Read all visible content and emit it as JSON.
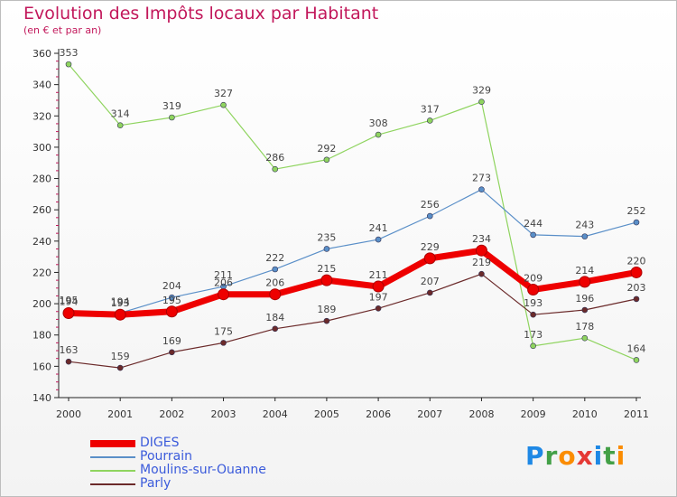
{
  "header": {
    "title": "Evolution des Impôts locaux par Habitant",
    "subtitle": "(en € et par an)"
  },
  "logo": {
    "letters": [
      "P",
      "r",
      "o",
      "x",
      "i",
      "t",
      "i"
    ],
    "colors": [
      "#1e88e5",
      "#43a047",
      "#fb8c00",
      "#e53935",
      "#1e88e5",
      "#43a047",
      "#fb8c00"
    ]
  },
  "chart_data": {
    "type": "line",
    "title": "Evolution des Impôts locaux par Habitant",
    "subtitle": "(en € et par an)",
    "x": [
      "2000",
      "2001",
      "2002",
      "2003",
      "2004",
      "2005",
      "2006",
      "2007",
      "2008",
      "2009",
      "2010",
      "2011"
    ],
    "ylim": [
      140,
      360
    ],
    "yticks": [
      140,
      160,
      180,
      200,
      220,
      240,
      260,
      280,
      300,
      320,
      340,
      360
    ],
    "grid": false,
    "legend_position": "bottom-left",
    "series": [
      {
        "name": "DIGES",
        "color": "#ee0000",
        "values": [
          194,
          193,
          195,
          206,
          206,
          215,
          211,
          229,
          234,
          209,
          214,
          220
        ]
      },
      {
        "name": "Pourrain",
        "color": "#5a8fc8",
        "values": [
          195,
          194,
          204,
          211,
          222,
          235,
          241,
          256,
          273,
          244,
          243,
          252
        ]
      },
      {
        "name": "Moulins-sur-Ouanne",
        "color": "#8fd45f",
        "values": [
          353,
          314,
          319,
          327,
          286,
          292,
          308,
          317,
          329,
          173,
          178,
          164
        ]
      },
      {
        "name": "Parly",
        "color": "#6b2a2a",
        "values": [
          163,
          159,
          169,
          175,
          184,
          189,
          197,
          207,
          219,
          193,
          196,
          203
        ]
      }
    ]
  }
}
